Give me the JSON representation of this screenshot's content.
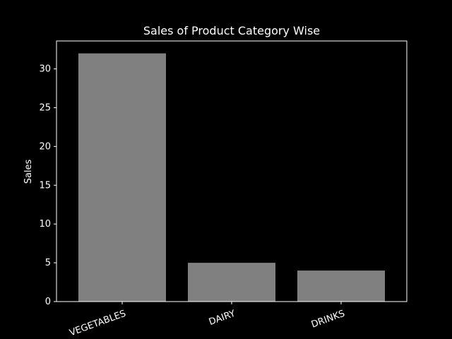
{
  "chart_data": {
    "type": "bar",
    "title": "Sales of Product Category Wise",
    "xlabel": "",
    "ylabel": "Sales",
    "categories": [
      "VEGETABLES",
      "DAIRY",
      "DRINKS"
    ],
    "values": [
      32,
      5,
      4
    ],
    "ylim": [
      0,
      33.6
    ],
    "yticks": [
      0,
      5,
      10,
      15,
      20,
      25,
      30
    ],
    "grid": false,
    "bar_color": "#808080",
    "background_color": "#000000",
    "text_color": "#ffffff",
    "x_tick_rotation_deg": 20
  }
}
